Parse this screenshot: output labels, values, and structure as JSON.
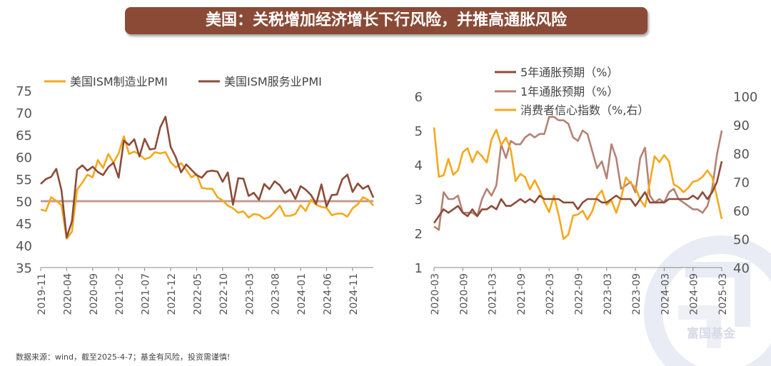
{
  "title": "美国：关税增加经济增长下行风险，并推高通胀风险",
  "source": "数据来源：wind，截至2025-4-7；基金有风险，投资需谨慎!",
  "logo_text": "富国基金",
  "colors": {
    "title_bg": "#8a4a36",
    "orange": "#f5a81c",
    "brown": "#8b4c39",
    "pink": "#b48274",
    "refline": "#c39b8f",
    "axis": "#888888"
  },
  "chart_data": [
    {
      "type": "line",
      "xlabels": [
        "2019-11",
        "2020-04",
        "2020-09",
        "2021-02",
        "2021-07",
        "2021-12",
        "2022-05",
        "2022-10",
        "2023-03",
        "2023-08",
        "2024-01",
        "2024-06",
        "2024-11"
      ],
      "ylim": [
        35,
        75
      ],
      "yticks": [
        35,
        40,
        45,
        50,
        55,
        60,
        65,
        70,
        75
      ],
      "reference_line": 50,
      "x": [
        "2019-11",
        "2019-12",
        "2020-01",
        "2020-02",
        "2020-03",
        "2020-04",
        "2020-05",
        "2020-06",
        "2020-07",
        "2020-08",
        "2020-09",
        "2020-10",
        "2020-11",
        "2020-12",
        "2021-01",
        "2021-02",
        "2021-03",
        "2021-04",
        "2021-05",
        "2021-06",
        "2021-07",
        "2021-08",
        "2021-09",
        "2021-10",
        "2021-11",
        "2021-12",
        "2022-01",
        "2022-02",
        "2022-03",
        "2022-04",
        "2022-05",
        "2022-06",
        "2022-07",
        "2022-08",
        "2022-09",
        "2022-10",
        "2022-11",
        "2022-12",
        "2023-01",
        "2023-02",
        "2023-03",
        "2023-04",
        "2023-05",
        "2023-06",
        "2023-07",
        "2023-08",
        "2023-09",
        "2023-10",
        "2023-11",
        "2023-12",
        "2024-01",
        "2024-02",
        "2024-03",
        "2024-04",
        "2024-05",
        "2024-06",
        "2024-07",
        "2024-08",
        "2024-09",
        "2024-10",
        "2024-11",
        "2024-12",
        "2025-01",
        "2025-02",
        "2025-03"
      ],
      "series": [
        {
          "name": "美国ISM制造业PMI",
          "color": "#f5a81c",
          "values": [
            48.1,
            47.8,
            50.9,
            50.1,
            49.1,
            41.5,
            43.1,
            52.6,
            54.2,
            56.0,
            55.4,
            59.3,
            57.5,
            60.7,
            58.7,
            60.8,
            64.7,
            60.7,
            61.2,
            60.6,
            59.5,
            59.9,
            61.1,
            60.8,
            61.1,
            58.8,
            57.6,
            58.6,
            57.1,
            55.4,
            56.1,
            53.0,
            52.8,
            52.8,
            50.9,
            50.2,
            49.0,
            48.4,
            47.4,
            47.7,
            46.3,
            47.1,
            46.9,
            46.0,
            46.4,
            47.6,
            49.0,
            46.7,
            46.7,
            47.1,
            49.1,
            47.8,
            50.3,
            49.2,
            48.7,
            48.5,
            46.8,
            47.2,
            47.2,
            46.5,
            48.4,
            49.3,
            50.9,
            50.3,
            49.0
          ]
        },
        {
          "name": "美国ISM服务业PMI",
          "color": "#8b4c39",
          "values": [
            53.9,
            55.0,
            55.5,
            57.3,
            52.5,
            41.8,
            45.4,
            57.1,
            58.1,
            56.9,
            57.8,
            56.6,
            55.9,
            57.7,
            58.7,
            55.3,
            63.7,
            62.7,
            64.0,
            60.1,
            64.1,
            61.7,
            61.9,
            66.7,
            69.1,
            62.3,
            59.9,
            56.5,
            58.3,
            57.1,
            55.9,
            55.3,
            56.7,
            56.9,
            56.7,
            54.4,
            56.5,
            49.2,
            55.2,
            55.1,
            51.2,
            51.9,
            50.3,
            53.9,
            52.7,
            54.5,
            53.6,
            51.8,
            52.7,
            50.5,
            53.4,
            52.6,
            51.4,
            49.4,
            53.8,
            48.8,
            51.4,
            51.5,
            54.9,
            56.0,
            52.1,
            54.0,
            52.8,
            53.5,
            50.8
          ]
        }
      ]
    },
    {
      "type": "line",
      "xlabels": [
        "2020-03",
        "2020-09",
        "2021-03",
        "2021-09",
        "2022-03",
        "2022-09",
        "2023-03",
        "2023-09",
        "2024-03",
        "2024-09",
        "2025-03"
      ],
      "ylim_left": [
        1,
        6
      ],
      "yticks_left": [
        1,
        2,
        3,
        4,
        5,
        6
      ],
      "ylim_right": [
        40,
        100
      ],
      "yticks_right": [
        40,
        50,
        60,
        70,
        80,
        90,
        100
      ],
      "x": [
        "2020-03",
        "2020-04",
        "2020-05",
        "2020-06",
        "2020-07",
        "2020-08",
        "2020-09",
        "2020-10",
        "2020-11",
        "2020-12",
        "2021-01",
        "2021-02",
        "2021-03",
        "2021-04",
        "2021-05",
        "2021-06",
        "2021-07",
        "2021-08",
        "2021-09",
        "2021-10",
        "2021-11",
        "2021-12",
        "2022-01",
        "2022-02",
        "2022-03",
        "2022-04",
        "2022-05",
        "2022-06",
        "2022-07",
        "2022-08",
        "2022-09",
        "2022-10",
        "2022-11",
        "2022-12",
        "2023-01",
        "2023-02",
        "2023-03",
        "2023-04",
        "2023-05",
        "2023-06",
        "2023-07",
        "2023-08",
        "2023-09",
        "2023-10",
        "2023-11",
        "2023-12",
        "2024-01",
        "2024-02",
        "2024-03",
        "2024-04",
        "2024-05",
        "2024-06",
        "2024-07",
        "2024-08",
        "2024-09",
        "2024-10",
        "2024-11",
        "2024-12",
        "2025-01",
        "2025-02",
        "2025-03"
      ],
      "series": [
        {
          "name": "5年通胀预期（%）",
          "color": "#8b4c39",
          "axis": "left",
          "values": [
            2.3,
            2.5,
            2.7,
            2.6,
            2.7,
            2.8,
            2.6,
            2.5,
            2.7,
            2.5,
            2.7,
            2.7,
            2.8,
            2.7,
            3.0,
            2.8,
            2.8,
            2.9,
            3.0,
            2.9,
            3.0,
            2.9,
            3.1,
            3.0,
            3.0,
            3.0,
            3.0,
            2.9,
            2.9,
            2.9,
            2.7,
            2.9,
            3.0,
            3.0,
            3.0,
            2.9,
            2.9,
            3.0,
            3.1,
            3.0,
            3.0,
            3.0,
            2.8,
            3.0,
            3.2,
            2.9,
            2.9,
            2.9,
            2.9,
            3.0,
            3.0,
            3.0,
            3.0,
            3.0,
            3.1,
            3.0,
            3.2,
            3.0,
            3.2,
            3.5,
            4.1
          ]
        },
        {
          "name": "1年通胀预期（%）",
          "color": "#b48274",
          "axis": "left",
          "values": [
            2.2,
            2.1,
            3.2,
            3.0,
            3.0,
            3.1,
            2.6,
            2.6,
            2.6,
            2.5,
            3.0,
            3.3,
            3.1,
            3.4,
            4.6,
            4.2,
            4.7,
            4.6,
            4.6,
            4.8,
            4.9,
            4.8,
            4.9,
            4.9,
            5.4,
            5.4,
            5.3,
            5.3,
            5.2,
            4.8,
            4.7,
            5.0,
            4.9,
            4.4,
            3.9,
            4.1,
            3.6,
            4.6,
            4.2,
            3.3,
            3.4,
            3.5,
            3.2,
            4.2,
            4.5,
            3.1,
            2.9,
            3.0,
            2.9,
            3.2,
            3.3,
            3.0,
            2.9,
            2.8,
            2.7,
            2.7,
            2.6,
            2.8,
            3.3,
            4.3,
            5.0
          ]
        },
        {
          "name": "消费者信心指数（%,右）",
          "color": "#f5a81c",
          "axis": "right",
          "values": [
            89.1,
            71.8,
            72.3,
            78.1,
            72.5,
            74.1,
            80.4,
            81.8,
            76.9,
            80.7,
            79.0,
            76.8,
            84.9,
            88.3,
            82.9,
            85.5,
            81.2,
            70.3,
            72.8,
            71.7,
            67.4,
            70.6,
            67.2,
            62.8,
            59.4,
            65.2,
            58.4,
            50.0,
            51.5,
            58.2,
            58.6,
            59.9,
            56.8,
            59.7,
            64.9,
            67.0,
            62.0,
            63.5,
            59.2,
            64.4,
            71.6,
            69.5,
            68.1,
            63.8,
            61.3,
            69.7,
            79.0,
            76.9,
            79.4,
            77.2,
            69.1,
            68.2,
            66.4,
            67.9,
            70.1,
            70.5,
            71.8,
            74.0,
            71.7,
            64.7,
            57.0
          ]
        }
      ]
    }
  ]
}
